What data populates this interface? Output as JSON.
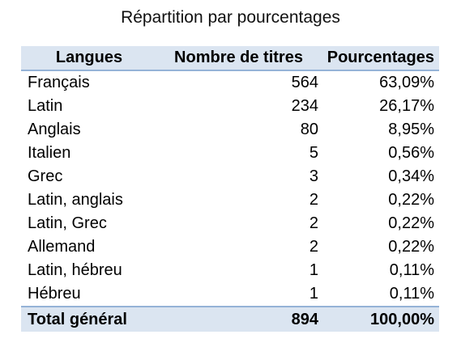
{
  "chart_data": {
    "type": "table",
    "title": "Répartition par pourcentages",
    "columns": [
      "Langues",
      "Nombre de titres",
      "Pourcentages"
    ],
    "rows": [
      {
        "langue": "Français",
        "titres": "564",
        "pourcentage": "63,09%"
      },
      {
        "langue": "Latin",
        "titres": "234",
        "pourcentage": "26,17%"
      },
      {
        "langue": "Anglais",
        "titres": "80",
        "pourcentage": "8,95%"
      },
      {
        "langue": "Italien",
        "titres": "5",
        "pourcentage": "0,56%"
      },
      {
        "langue": "Grec",
        "titres": "3",
        "pourcentage": "0,34%"
      },
      {
        "langue": "Latin, anglais",
        "titres": "2",
        "pourcentage": "0,22%"
      },
      {
        "langue": "Latin, Grec",
        "titres": "2",
        "pourcentage": "0,22%"
      },
      {
        "langue": "Allemand",
        "titres": "2",
        "pourcentage": "0,22%"
      },
      {
        "langue": "Latin, hébreu",
        "titres": "1",
        "pourcentage": "0,11%"
      },
      {
        "langue": "Hébreu",
        "titres": "1",
        "pourcentage": "0,11%"
      }
    ],
    "total": {
      "langue": "Total général",
      "titres": "894",
      "pourcentage": "100,00%"
    },
    "colors": {
      "header_band": "#dbe5f1",
      "rule": "#95b3d7"
    }
  }
}
